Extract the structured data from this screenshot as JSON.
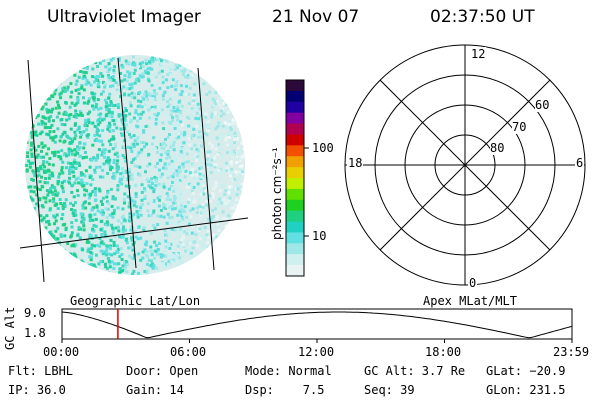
{
  "header": {
    "instrument": "Ultraviolet Imager",
    "date": "21 Nov 07",
    "time": "02:37:50 UT"
  },
  "colorbar": {
    "label": "photon cm⁻²s⁻¹",
    "tick_100": "100",
    "tick_10": "10",
    "colors": [
      "#2b0a3a",
      "#000070",
      "#2000a0",
      "#8000a0",
      "#b00050",
      "#d00000",
      "#f05000",
      "#f0a000",
      "#e8d000",
      "#c0f000",
      "#60e000",
      "#20d020",
      "#20d080",
      "#20d0c0",
      "#60e0e0",
      "#a0e8e8",
      "#d0f0f0",
      "#e8f4f4"
    ]
  },
  "polar": {
    "labels": {
      "top": "12",
      "bottom": "0",
      "left": "18",
      "right": "6"
    },
    "rings": {
      "r60": "60",
      "r70": "70",
      "r80": "80"
    }
  },
  "timeline": {
    "left_title": "Geographic Lat/Lon",
    "right_title": "Apex MLat/MLT",
    "axis_label": "GC Alt",
    "y_top": "9.0",
    "y_bottom": "1.8",
    "ticks": [
      "00:00",
      "06:00",
      "12:00",
      "18:00",
      "23:59"
    ],
    "marker_time": "02:37:50"
  },
  "info": {
    "flt": "Flt: LBHL",
    "door": "Door: Open",
    "mode": "Mode: Normal",
    "gcalt": "GC Alt: 3.7 Re",
    "glat": "GLat: −20.9",
    "ip": "IP: 36.0",
    "gain": "Gain: 14",
    "dsp": "Dsp:    7.5",
    "seq": "Seq: 39",
    "glon": "GLon: 231.5"
  }
}
